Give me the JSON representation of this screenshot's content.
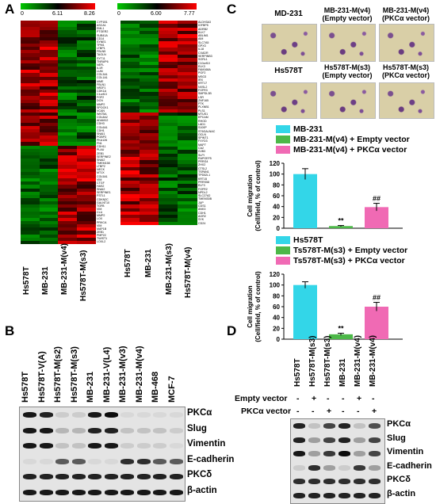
{
  "panels": {
    "A": "A",
    "B": "B",
    "C": "C",
    "D": "D"
  },
  "heatmap_left": {
    "scale": {
      "min": "0",
      "mid": "6.11",
      "max": "8.26"
    },
    "samples": [
      "Hs578T",
      "MB-231",
      "MB-231-M(v4)",
      "Hs578T-M(s3)"
    ],
    "genes": [
      "CYP1B1",
      "ASCA1",
      "EML1",
      "PTGER2",
      "SUB41A",
      "CD14",
      "SYNE1",
      "TPM1",
      "LTBP1",
      "FBLN5",
      "TAGLN",
      "SYT11",
      "TNFAIP6",
      "NEFL",
      "IL1R",
      "LUM",
      "COL3A1",
      "COL1A1",
      "MME",
      "FBLN1",
      "NR2F1",
      "CDK1A",
      "C1orf13",
      "FGF2",
      "DCN",
      "MMP2",
      "SPOCK1",
      "VCAN",
      "WNT5A",
      "COL8A2",
      "ADAM12",
      "CDH3",
      "COL6A1",
      "CDH1",
      "SNAI1",
      "PGBP3",
      "PKA126",
      "FN1",
      "CDH11",
      "PLAU",
      "ZEB1",
      "SERPINE2",
      "SNAI2",
      "TMEM158",
      "LTBP2",
      "NECK",
      "MT1X",
      "COL5A1",
      "VIM",
      "CTGF",
      "HAS2",
      "SNAI2",
      "SERPINE1",
      "FSTL1",
      "CDKN2C",
      "GALNT10",
      "TGFB",
      "VIM",
      "CLU",
      "MMP2",
      "LOX",
      "PRKCA",
      "VIM",
      "MAP1B",
      "ZEB1",
      "PMP22",
      "TWIST1",
      "LOXL2"
    ]
  },
  "heatmap_right": {
    "scale": {
      "min": "0",
      "mid": "6.00",
      "max": "7.77"
    },
    "samples": [
      "Hs578T",
      "MB-231",
      "MB-231-M(s3)",
      "Hs578T-M(v4)"
    ],
    "genes": [
      "ALDH3A3",
      "IGFBP5",
      "ADRB2",
      "KLK7",
      "ABLIM1",
      "AIM",
      "SLC7A5",
      "GPX3",
      "IL18",
      "CXADR",
      "SERPINB3",
      "SORL1",
      "C10orf10",
      "ELK3",
      "FAM168A",
      "PGF2",
      "MSG3",
      "IRX",
      "KRT17",
      "NXSL2",
      "FGFR3",
      "SMPDL3B",
      "LSR",
      "ZNF165",
      "PTK",
      "PLXNB1",
      "PLS1",
      "MTUS1",
      "EPCAM",
      "RHOD",
      "LAD1",
      "S100P",
      "ST6GALNAC",
      "OCLN",
      "SPINT1",
      "FXYD3",
      "MAP7",
      "CA2",
      "GJB3",
      "SLPI",
      "RAPGEF5",
      "PRRG4",
      "ZHX2",
      "CTSL2",
      "TSPAN1",
      "TPD52L1",
      "KRT15",
      "PRRS58",
      "ELF3",
      "FGFR2",
      "NPDL2",
      "SLC27A2",
      "TMEM30B",
      "JUP",
      "CDS1",
      "ANK3",
      "CDH1",
      "AGR2",
      "SYK",
      "CD24"
    ]
  },
  "panel_b": {
    "lanes": [
      "Hs578T",
      "Hs578T-V(A)",
      "Hs578T-M(s2)",
      "Hs578T-M(s3)",
      "MB-231",
      "MB-231-V(L4)",
      "MB-231-M(v3)",
      "MB-231-M(v4)",
      "MB-468",
      "MCF-7"
    ],
    "proteins": [
      "PKCα",
      "Slug",
      "Vimentin",
      "E-cadherin",
      "PKCδ",
      "β-actin"
    ]
  },
  "panel_c": {
    "photos": [
      "MD-231",
      "MB-231-M(v4)\n(Empty vector)",
      "MB-231-M(v4)\n(PKCα vector)",
      "Hs578T",
      "Hs578T-M(s3)\n(Empty vector)",
      "Hs578T-M(s3)\n(PKCα vector)"
    ],
    "ylabel": "Cell migration\n(Cell/field, % of control)",
    "significance": {
      "single": "**",
      "double": "##"
    }
  },
  "chart_data": [
    {
      "type": "bar",
      "categories": [
        "MB-231",
        "MB-231-M(v4) + Empty vector",
        "MB-231-M(v4) + PKCα vector"
      ],
      "values": [
        100,
        4,
        39
      ],
      "errors": [
        10,
        1,
        7
      ],
      "colors": [
        "#33d6e8",
        "#4cb848",
        "#f06ab4"
      ],
      "ylabel": "Cell migration\n(Cell/field, % of control)",
      "ylim": [
        0,
        120
      ],
      "yticks": [
        0,
        20,
        40,
        60,
        80,
        100,
        120
      ],
      "annotations": [
        "",
        "**",
        "##"
      ]
    },
    {
      "type": "bar",
      "categories": [
        "Hs578T",
        "Ts578T-M(s3) + Empty vector",
        "Ts578T-M(s3) + PKCα vector"
      ],
      "values": [
        100,
        9,
        60
      ],
      "errors": [
        6,
        2,
        8
      ],
      "colors": [
        "#33d6e8",
        "#4cb848",
        "#f06ab4"
      ],
      "ylabel": "Cell migration\n(Cell/field, % of control)",
      "ylim": [
        0,
        120
      ],
      "yticks": [
        0,
        20,
        40,
        60,
        80,
        100,
        120
      ],
      "annotations": [
        "",
        "**",
        "##"
      ]
    }
  ],
  "panel_d": {
    "lanes": [
      "Hs578T",
      "Hs578T-M(s3)",
      "Hs578T-M(s3)",
      "MB-231",
      "MB-231-M(v4)",
      "MB-231-M(v4)"
    ],
    "row_labels": [
      "Empty vector",
      "PKCα vector"
    ],
    "empty_signs": [
      "-",
      "+",
      "-",
      "-",
      "+",
      "-"
    ],
    "pkca_signs": [
      "-",
      "-",
      "+",
      "-",
      "-",
      "+"
    ],
    "proteins": [
      "PKCα",
      "Slug",
      "Vimentin",
      "E-cadherin",
      "PKCδ",
      "β-actin"
    ]
  }
}
